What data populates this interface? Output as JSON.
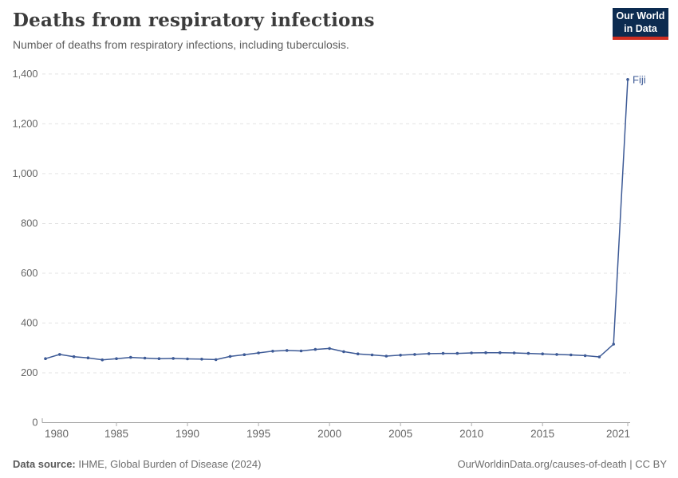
{
  "header": {
    "title": "Deaths from respiratory infections",
    "subtitle": "Number of deaths from respiratory infections, including tuberculosis."
  },
  "logo": {
    "line1": "Our World",
    "line2": "in Data",
    "bg_color": "#0c2b50",
    "accent_color": "#cf2e21"
  },
  "footer": {
    "source_label": "Data source:",
    "source_text": "IHME, Global Burden of Disease (2024)",
    "credit": "OurWorldinData.org/causes-of-death | CC BY"
  },
  "chart_data": {
    "type": "line",
    "title": "Deaths from respiratory infections",
    "subtitle": "Number of deaths from respiratory infections, including tuberculosis.",
    "x": [
      1980,
      1981,
      1982,
      1983,
      1984,
      1985,
      1986,
      1987,
      1988,
      1989,
      1990,
      1991,
      1992,
      1993,
      1994,
      1995,
      1996,
      1997,
      1998,
      1999,
      2000,
      2001,
      2002,
      2003,
      2004,
      2005,
      2006,
      2007,
      2008,
      2009,
      2010,
      2011,
      2012,
      2013,
      2014,
      2015,
      2016,
      2017,
      2018,
      2019,
      2020,
      2021
    ],
    "series": [
      {
        "name": "Fiji",
        "color": "#3d5a96",
        "values": [
          257,
          274,
          265,
          260,
          252,
          257,
          262,
          259,
          257,
          258,
          256,
          255,
          253,
          266,
          273,
          280,
          287,
          290,
          288,
          294,
          298,
          285,
          276,
          272,
          267,
          271,
          274,
          277,
          278,
          278,
          280,
          281,
          281,
          280,
          278,
          276,
          274,
          272,
          269,
          264,
          315,
          1378
        ]
      }
    ],
    "xlabel": "",
    "ylabel": "",
    "xlim": [
      1980,
      2021
    ],
    "ylim": [
      0,
      1400
    ],
    "yticks": [
      0,
      200,
      400,
      600,
      800,
      1000,
      1200,
      1400
    ],
    "ytick_labels": [
      "0",
      "200",
      "400",
      "600",
      "800",
      "1,000",
      "1,200",
      "1,400"
    ],
    "xticks": [
      1980,
      1985,
      1990,
      1995,
      2000,
      2005,
      2010,
      2015,
      2021
    ],
    "grid": "horizontal-dashed",
    "legend_position": "end-of-line-label",
    "end_label": "Fiji"
  }
}
